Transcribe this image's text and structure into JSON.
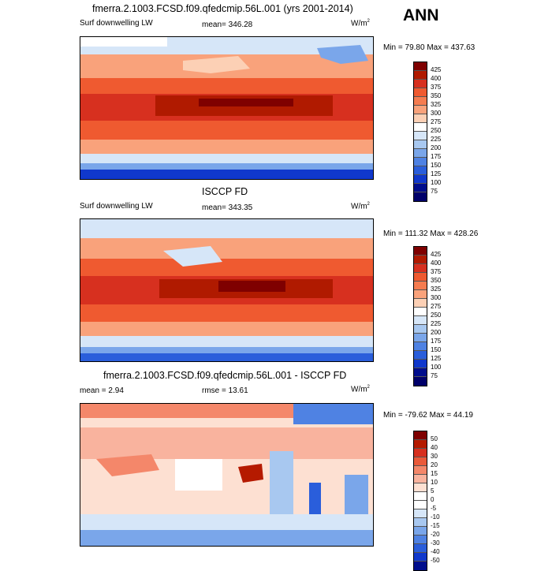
{
  "season_label": "ANN",
  "panels": [
    {
      "id": "model",
      "title": "fmerra.2.1003.FCSD.f09.qfedcmip.56L.001 (yrs 2001-2014)",
      "left_label": "Surf downwelling LW",
      "center_label": "mean= 346.28",
      "units_base": "W/m",
      "units_exp": "2",
      "minmax": "Min =  79.80 Max = 437.63",
      "scale": "abs",
      "levels": [
        "425",
        "400",
        "375",
        "350",
        "325",
        "300",
        "275",
        "250",
        "225",
        "200",
        "175",
        "150",
        "125",
        "100",
        "75"
      ]
    },
    {
      "id": "obs",
      "title": "ISCCP FD",
      "left_label": "Surf downwelling LW",
      "center_label": "mean= 343.35",
      "units_base": "W/m",
      "units_exp": "2",
      "minmax": "Min = 111.32 Max = 428.26",
      "scale": "abs",
      "levels": [
        "425",
        "400",
        "375",
        "350",
        "325",
        "300",
        "275",
        "250",
        "225",
        "200",
        "175",
        "150",
        "125",
        "100",
        "75"
      ]
    },
    {
      "id": "diff",
      "title": "fmerra.2.1003.FCSD.f09.qfedcmip.56L.001 - ISCCP FD",
      "left_label": "mean =   2.94",
      "center_label": "rmse =  13.61",
      "units_base": "W/m",
      "units_exp": "2",
      "minmax": "Min = -79.62  Max =  44.19",
      "scale": "diff",
      "levels": [
        "50",
        "40",
        "30",
        "20",
        "15",
        "10",
        "5",
        "0",
        "-5",
        "-10",
        "-15",
        "-20",
        "-30",
        "-40",
        "-50"
      ]
    }
  ],
  "colors": {
    "abs": [
      "#7f0000",
      "#b01a00",
      "#d7301f",
      "#ef5a30",
      "#f57c50",
      "#f9a27b",
      "#fcd0b5",
      "#ffffff",
      "#d6e6f8",
      "#a8c8f0",
      "#7aa6ea",
      "#4f82e3",
      "#2a5edb",
      "#1038cc",
      "#000d8c",
      "#00006a"
    ],
    "diff": [
      "#7f0000",
      "#b51a00",
      "#d7301f",
      "#ea5a3a",
      "#f4876a",
      "#f9b39e",
      "#fde0d2",
      "#ffffff",
      "#ffffff",
      "#d6e6f8",
      "#a8c8f0",
      "#7aa6ea",
      "#4f82e3",
      "#2a5edb",
      "#1038cc",
      "#000d8c"
    ]
  }
}
